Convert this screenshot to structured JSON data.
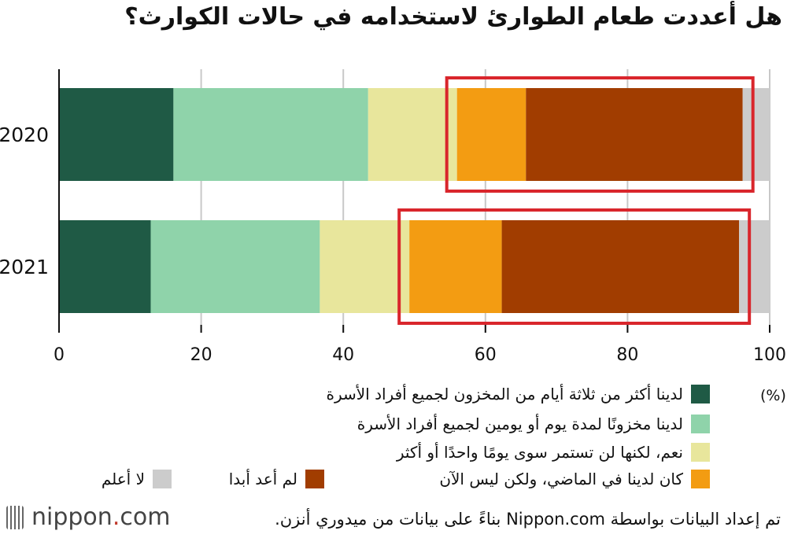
{
  "title": "هل أعددت طعام الطوارئ لاستخدامه في حالات الكوارث؟",
  "unit_label": "(%)",
  "brand": {
    "prefix": "nippon",
    "dot": ".",
    "suffix": "com"
  },
  "source_text": "تم إعداد البيانات بواسطة Nippon.com بناءً على بيانات من ميدوري أنزن.",
  "legend": [
    {
      "label": "لدينا أكثر من ثلاثة أيام من المخزون لجميع أفراد الأسرة",
      "color": "#1f5a45"
    },
    {
      "label": "لدينا مخزونًا لمدة يوم أو يومين لجميع أفراد الأسرة",
      "color": "#8fd3aa"
    },
    {
      "label": "نعم، لكنها لن تستمر سوى يومًا واحدًا أو أكثر",
      "color": "#e8e69c"
    },
    {
      "label": "كان لدينا في الماضي، ولكن ليس الآن",
      "color": "#f39c12"
    },
    {
      "label": "لم أعد أبدا",
      "color": "#a13d00"
    },
    {
      "label": "لا أعلم",
      "color": "#cccccc"
    }
  ],
  "chart_data": {
    "type": "bar",
    "orientation": "horizontal",
    "stacked": true,
    "categories": [
      "2020",
      "2021"
    ],
    "series": [
      {
        "name": "لدينا أكثر من ثلاثة أيام من المخزون لجميع أفراد الأسرة",
        "values": [
          16.1,
          12.9
        ]
      },
      {
        "name": "لدينا مخزونًا لمدة يوم أو يومين لجميع أفراد الأسرة",
        "values": [
          27.4,
          23.8
        ]
      },
      {
        "name": "نعم، لكنها لن تستمر سوى يومًا واحدًا أو أكثر",
        "values": [
          12.5,
          12.6
        ]
      },
      {
        "name": "كان لدينا في الماضي، ولكن ليس الآن",
        "values": [
          9.7,
          13.0
        ]
      },
      {
        "name": "لم أعد أبدا",
        "values": [
          30.5,
          33.4
        ]
      },
      {
        "name": "لا أعلم",
        "values": [
          3.8,
          4.3
        ]
      }
    ],
    "xlim": [
      0,
      100
    ],
    "xticks": [
      0,
      20,
      40,
      60,
      80,
      100
    ],
    "grid": true,
    "highlight": "red outline boxes around the last three segments of each bar",
    "legend_position": "bottom"
  }
}
